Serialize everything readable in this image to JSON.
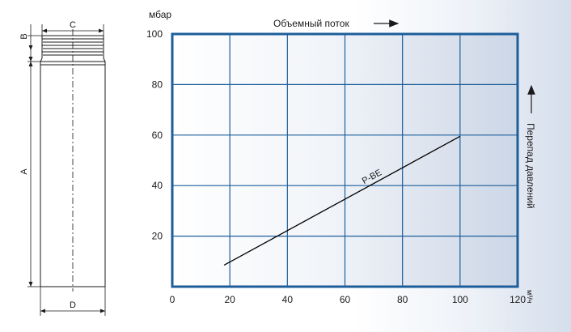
{
  "filter_drawing": {
    "dim_labels": {
      "b": "B",
      "c": "C",
      "a": "A",
      "d": "D"
    }
  },
  "chart_data": {
    "type": "line",
    "top_label": "Объемный поток",
    "y_unit_label": "мбар",
    "right_label": "Перепад давлений",
    "x_unit_label": "м³/ч",
    "xlim": [
      0,
      120
    ],
    "ylim": [
      0,
      100
    ],
    "x_ticks": [
      0,
      20,
      40,
      60,
      80,
      100,
      120
    ],
    "y_ticks": [
      20,
      40,
      60,
      80,
      100
    ],
    "grid": true,
    "series": [
      {
        "name": "P-BE",
        "x": [
          18,
          100
        ],
        "y": [
          8.5,
          59.5
        ]
      }
    ],
    "colors": {
      "grid": "#1d5e9a",
      "frame": "#1d5e9a",
      "line": "#000000"
    }
  }
}
